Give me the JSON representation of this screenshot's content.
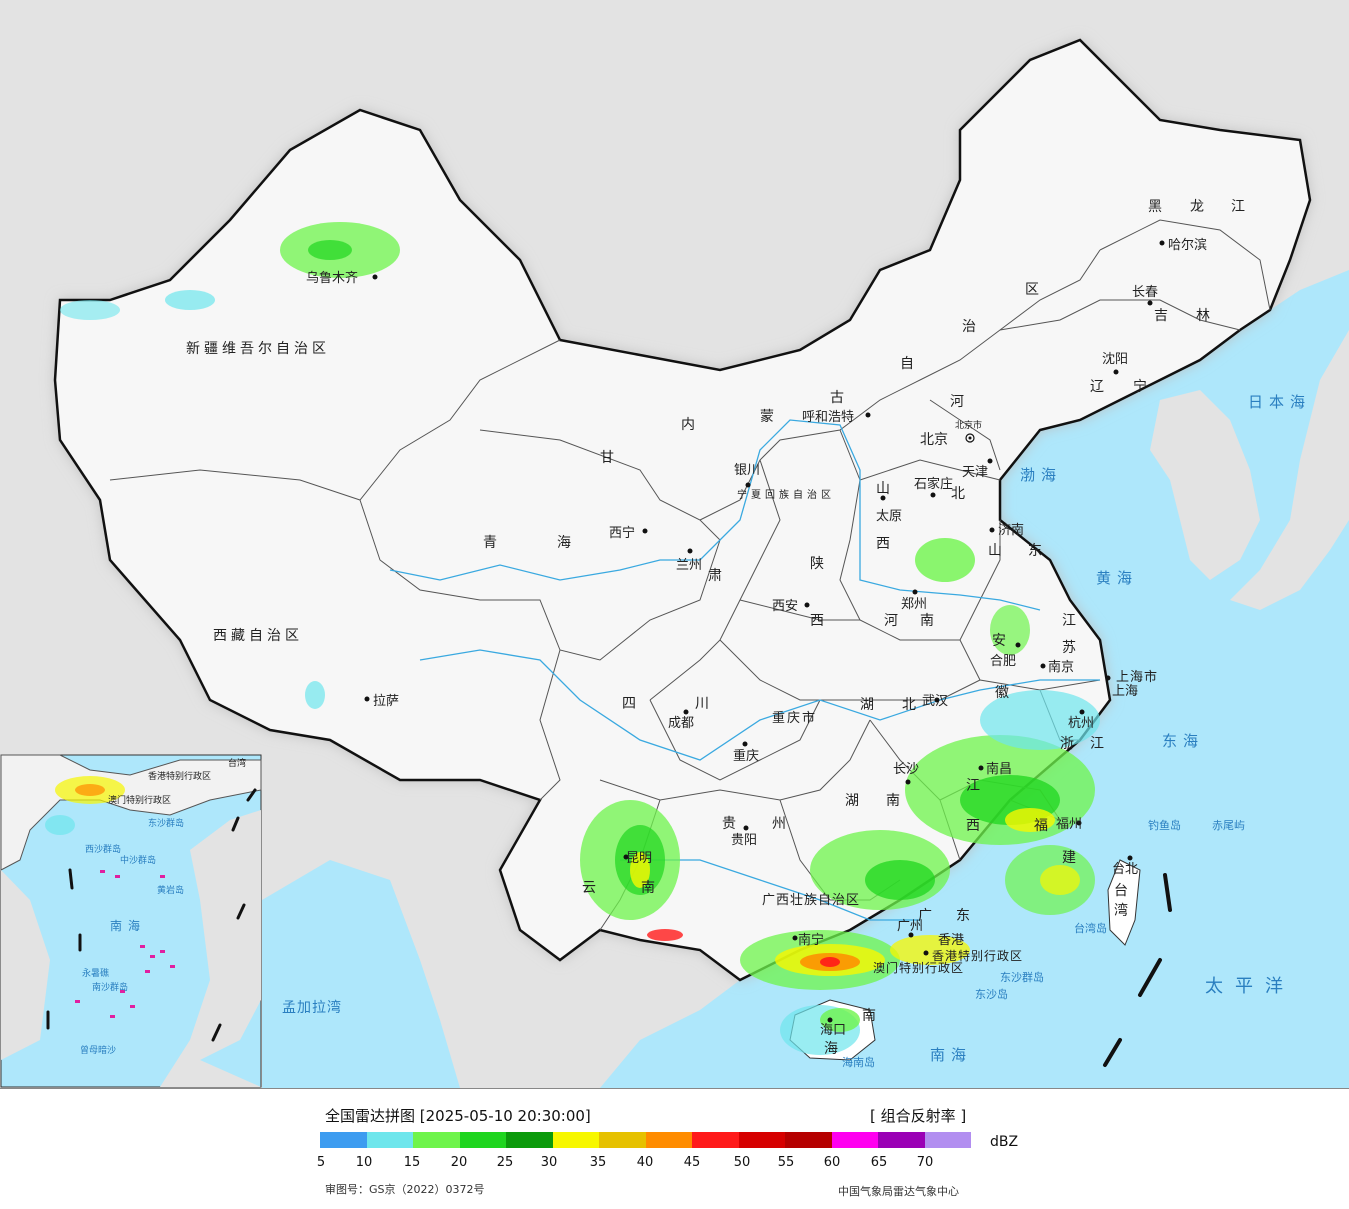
{
  "legend": {
    "title": "全国雷达拼图 [2025-05-10 20:30:00]",
    "product": "[ 组合反射率 ]",
    "unit": "dBZ",
    "colors": [
      "#3d9cf0",
      "#6ee6ec",
      "#6ef44b",
      "#1fd51f",
      "#0b9a0b",
      "#f7f700",
      "#e6c100",
      "#ff8c00",
      "#ff1a1a",
      "#d60000",
      "#b50000",
      "#ff00f0",
      "#9a00b5",
      "#b28ef0"
    ],
    "ticks": [
      "5",
      "10",
      "15",
      "20",
      "25",
      "30",
      "35",
      "40",
      "45",
      "50",
      "55",
      "60",
      "65",
      "70"
    ],
    "review_no": "审图号：GS京（2022）0372号",
    "source": "中国气象局雷达气象中心"
  },
  "map": {
    "provinces": [
      "新疆维吾尔自治区",
      "西藏自治区",
      "青",
      "海",
      "甘",
      "肃",
      "内",
      "蒙",
      "古",
      "自",
      "治",
      "区",
      "黑",
      "龙",
      "江",
      "吉",
      "林",
      "辽",
      "宁",
      "河",
      "北",
      "山",
      "西",
      "陕",
      "西",
      "宁夏回族自治区",
      "山",
      "东",
      "河",
      "南",
      "江",
      "苏",
      "安",
      "徽",
      "湖",
      "北",
      "四",
      "川",
      "重庆市",
      "贵",
      "州",
      "云",
      "南",
      "广西壮族自治区",
      "广",
      "东",
      "湖",
      "南",
      "江",
      "西",
      "浙",
      "江",
      "福",
      "建",
      "上海市",
      "海",
      "南",
      "台",
      "湾",
      "香港特别行政区",
      "澳门特别行政区"
    ],
    "cities": [
      "乌鲁木齐",
      "拉萨",
      "西宁",
      "兰州",
      "银川",
      "呼和浩特",
      "北京市",
      "北京",
      "天津",
      "石家庄",
      "太原",
      "济南",
      "西安",
      "郑州",
      "合肥",
      "南京",
      "上海",
      "杭州",
      "武汉",
      "成都",
      "重庆",
      "长沙",
      "南昌",
      "福州",
      "贵阳",
      "昆明",
      "南宁",
      "广州",
      "香港",
      "台北",
      "海口",
      "哈尔滨",
      "长春",
      "沈阳"
    ],
    "seas": [
      "日本海",
      "渤海",
      "黄海",
      "东海",
      "太平洋",
      "南海",
      "孟加拉湾"
    ],
    "islands": [
      "钓鱼岛",
      "赤尾屿",
      "台湾岛",
      "东沙群岛",
      "东沙岛",
      "海南岛"
    ],
    "inset": [
      "南海",
      "东沙群岛",
      "中沙群岛",
      "西沙群岛",
      "南沙群岛",
      "黄岩岛",
      "永暑礁",
      "曾母暗沙",
      "台湾",
      "香港特别行政区",
      "澳门特别行政区"
    ]
  }
}
